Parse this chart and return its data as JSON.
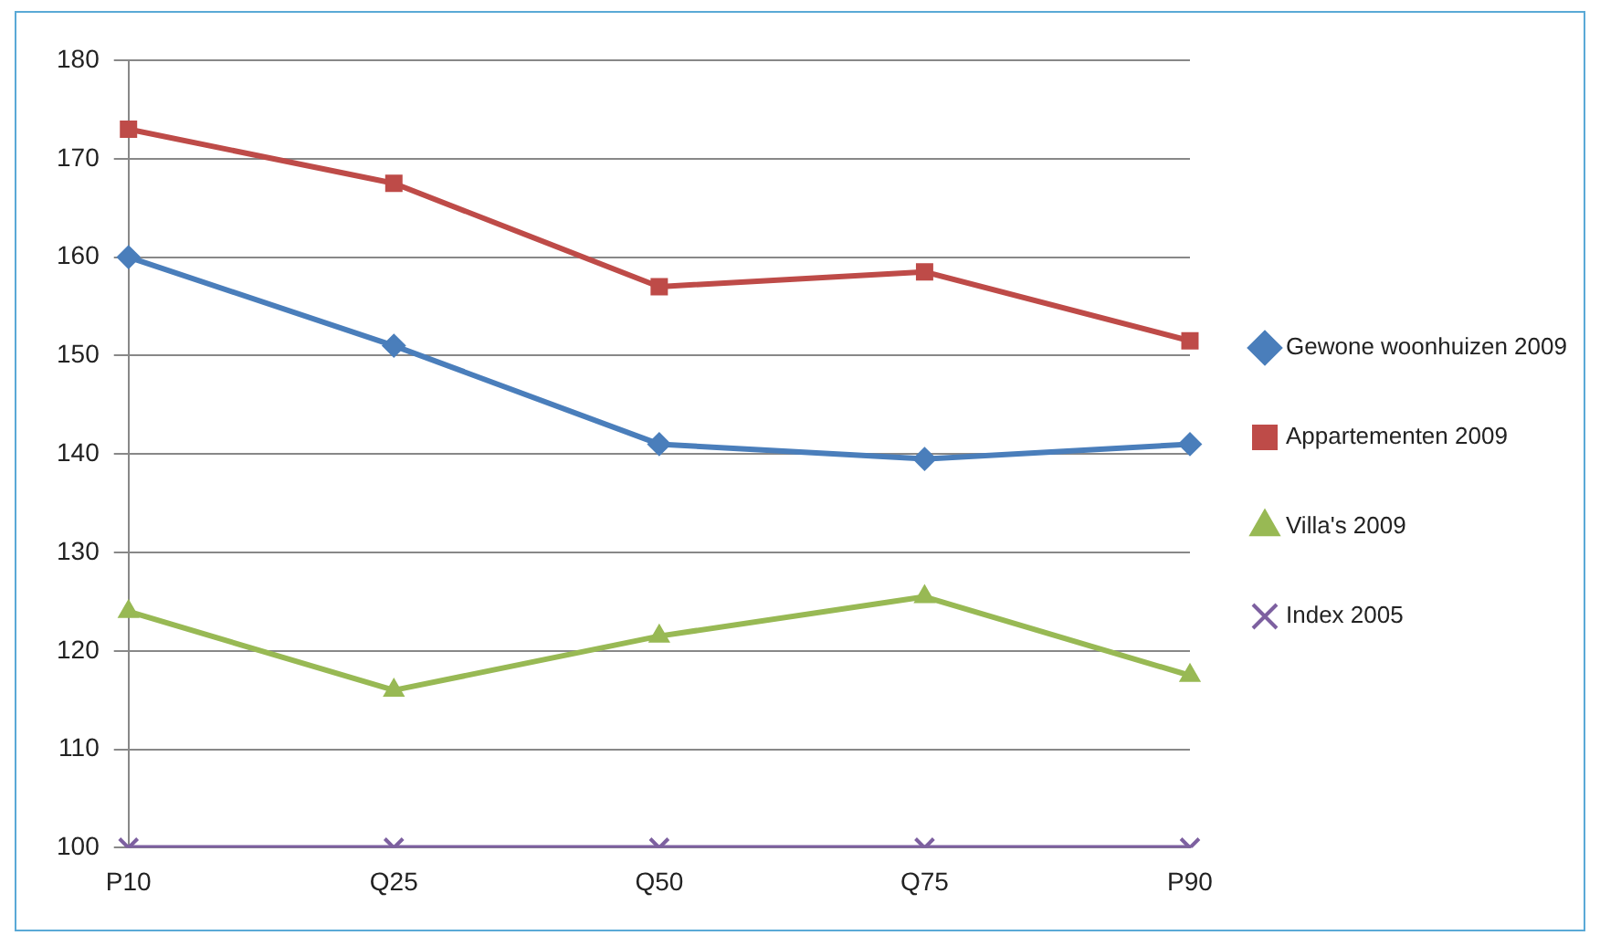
{
  "chart_data": {
    "type": "line",
    "categories": [
      "P10",
      "Q25",
      "Q50",
      "Q75",
      "P90"
    ],
    "series": [
      {
        "name": "Gewone woonhuizen 2009",
        "color": "#4a7ebb",
        "marker": "diamond",
        "values": [
          160,
          151,
          141,
          139.5,
          141
        ]
      },
      {
        "name": "Appartementen 2009",
        "color": "#be4b48",
        "marker": "square",
        "values": [
          173,
          167.5,
          157,
          158.5,
          151.5
        ]
      },
      {
        "name": "Villa's 2009",
        "color": "#98b954",
        "marker": "triangle",
        "values": [
          124,
          116,
          121.5,
          125.5,
          117.5
        ]
      },
      {
        "name": "Index 2005",
        "color": "#7d60a0",
        "marker": "cross",
        "values": [
          100,
          100,
          100,
          100,
          100
        ]
      }
    ],
    "ylim": [
      100,
      180
    ],
    "yticks": [
      100,
      110,
      120,
      130,
      140,
      150,
      160,
      170,
      180
    ],
    "grid": "y",
    "legend": "right"
  }
}
